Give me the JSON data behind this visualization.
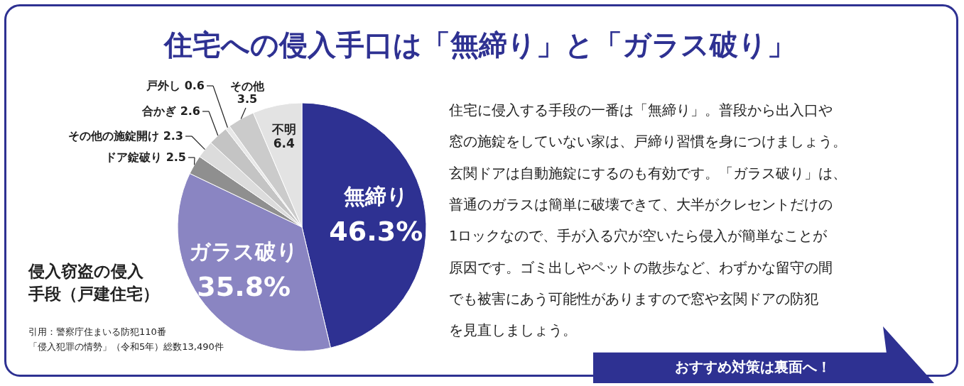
{
  "chart_data": [
    {
      "type": "pie",
      "title": "住宅への侵入手口は「無締り」と「ガラス破り」",
      "categories": [
        "無締り",
        "ガラス破り",
        "ドア錠破り",
        "その他の施錠開け",
        "合かぎ",
        "戸外し",
        "その他",
        "不明"
      ],
      "values": [
        46.3,
        35.8,
        2.5,
        2.3,
        2.6,
        0.6,
        3.5,
        6.4
      ],
      "value_labels": [
        "46.3%",
        "35.8%",
        "2.5",
        "2.3",
        "2.6",
        "0.6",
        "3.5",
        "6.4"
      ],
      "colors": [
        "#2e3192",
        "#8a85c2",
        "#8f8f8f",
        "#dcdcdc",
        "#c4c4c4",
        "#e8e8e8",
        "#cbcbcb",
        "#e3e3e3"
      ],
      "annotations": [
        "侵入窃盗の侵入",
        "手段（戸建住宅）",
        "引用：警察庁住まいる防犯110番",
        "「侵入犯罪の情勢」（令和5年）総数13,490件"
      ]
    },
    {
      "type": "other",
      "annotations": [
        "住宅に侵入する手段の一番は「無締り」。普段から出入口や",
        "窓の施錠をしていない家は、戸締り習慣を身につけましょう。",
        "玄関ドアは自動施錠にするのも有効です。「ガラス破り」は、",
        "普通のガラスは簡単に破壊できて、大半がクレセントだけの",
        "1ロックなので、手が入る穴が空いたら侵入が簡単なことが",
        "原因です。ゴミ出しやペットの散歩など、わずかな留守の間",
        "でも被害にあう可能性がありますので窓や玄関ドアの防犯",
        "を見直しましょう。",
        "おすすめ対策は裏面へ！"
      ]
    }
  ]
}
